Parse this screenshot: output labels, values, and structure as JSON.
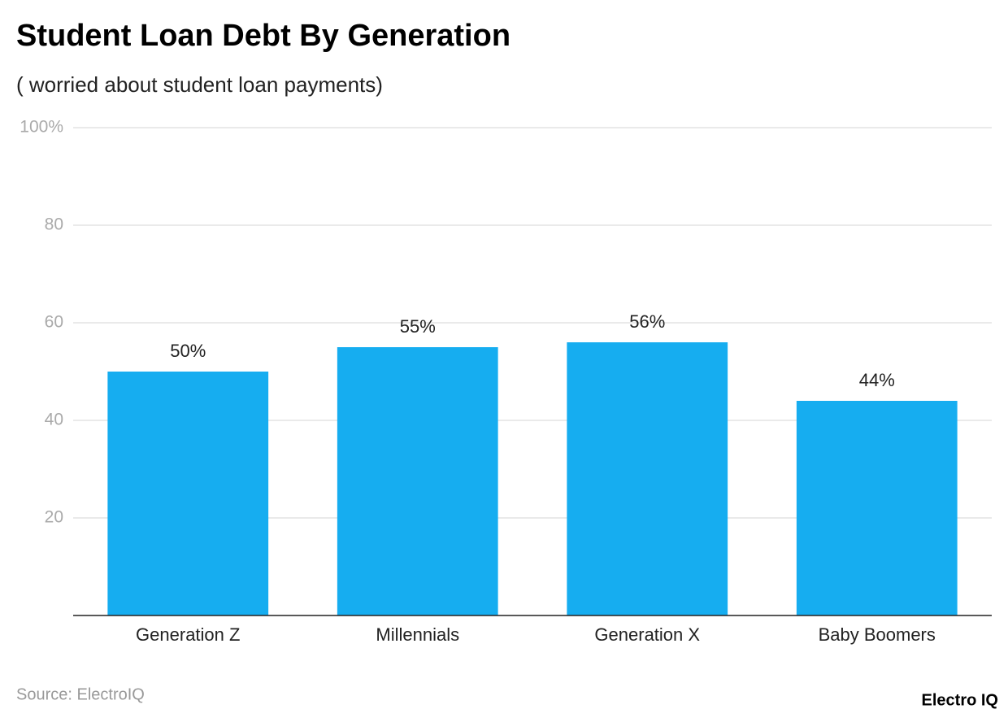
{
  "chart_data": {
    "type": "bar",
    "title": "Student Loan Debt By Generation",
    "subtitle": "( worried about student loan payments)",
    "categories": [
      "Generation Z",
      "Millennials",
      "Generation X",
      "Baby Boomers"
    ],
    "values": [
      50,
      55,
      56,
      44
    ],
    "value_labels": [
      "50%",
      "55%",
      "56%",
      "44%"
    ],
    "color": "#16adf0",
    "ylim": [
      0,
      100
    ],
    "yticks": [
      20,
      40,
      60,
      80,
      {
        "value": 100,
        "label": "100%"
      }
    ],
    "grid": true,
    "source": "Source: ElectroIQ",
    "logo": "Electro IQ"
  }
}
